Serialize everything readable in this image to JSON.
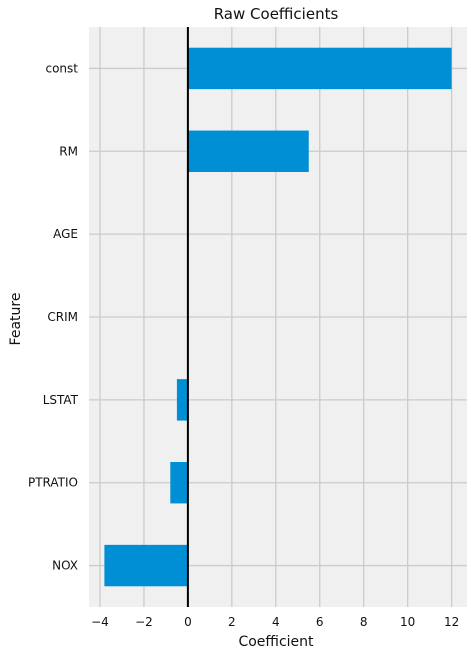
{
  "chart_data": {
    "type": "bar",
    "orientation": "horizontal",
    "title": "Raw Coefficients",
    "xlabel": "Coefficient",
    "ylabel": "Feature",
    "categories": [
      "const",
      "RM",
      "AGE",
      "CRIM",
      "LSTAT",
      "PTRATIO",
      "NOX"
    ],
    "values": [
      12.0,
      5.5,
      0.0,
      -0.01,
      -0.5,
      -0.8,
      -3.8
    ],
    "xlim": [
      -4.5,
      12.7
    ],
    "xticks": [
      -4,
      -2,
      0,
      2,
      4,
      6,
      8,
      10,
      12
    ],
    "xtick_labels": [
      "−4",
      "−2",
      "0",
      "2",
      "4",
      "6",
      "8",
      "10",
      "12"
    ],
    "grid": true,
    "zero_line": true,
    "bar_color": "#008fd5",
    "background_color": "#f0f0f0"
  }
}
